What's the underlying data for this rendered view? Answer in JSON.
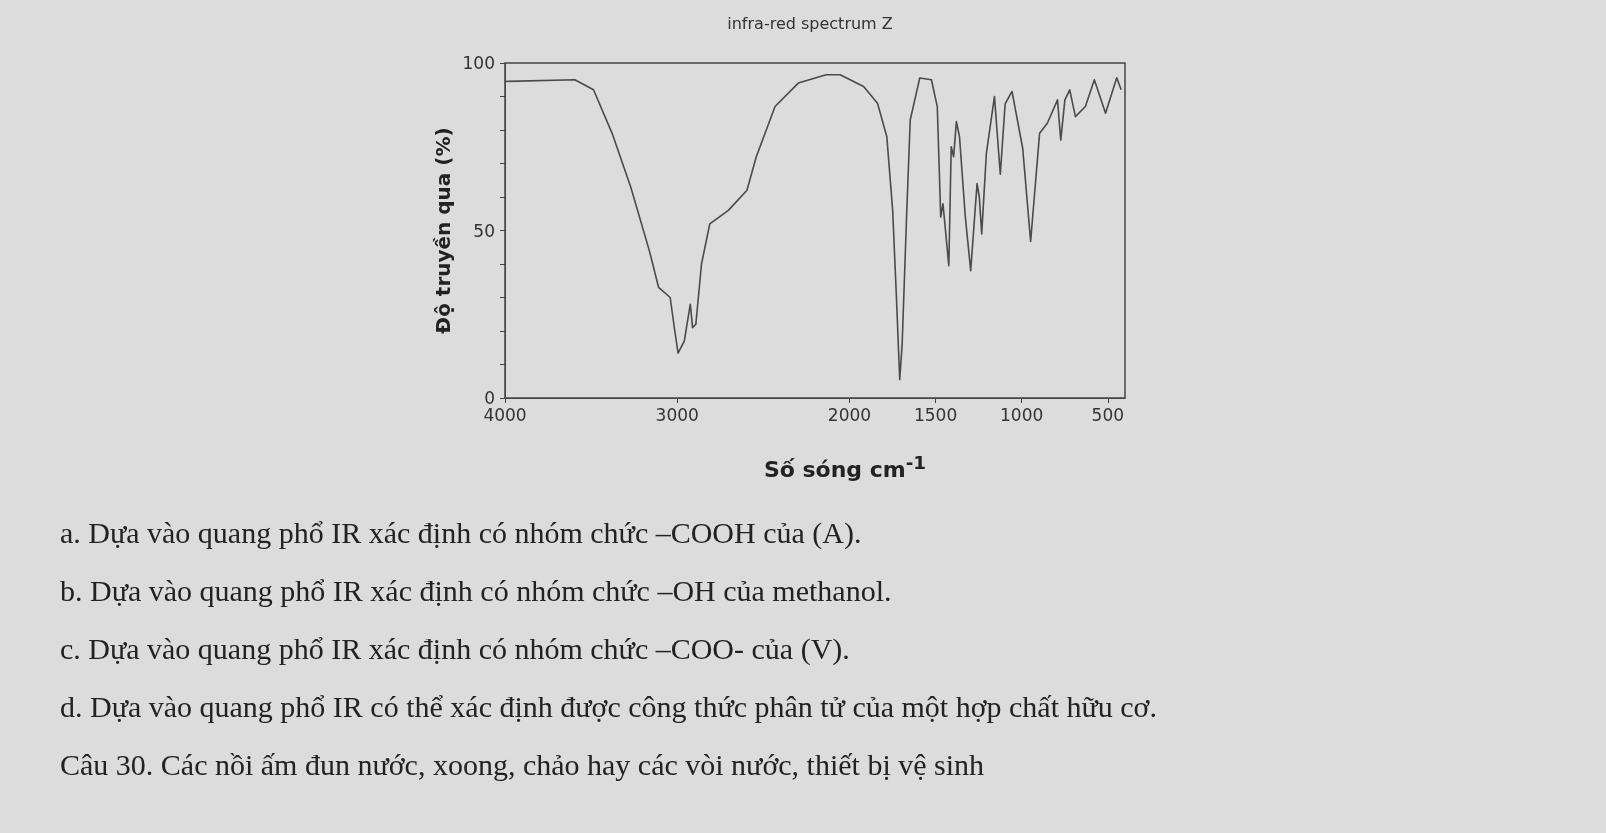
{
  "chart_data": {
    "type": "line",
    "title": "infra-red spectrum Z",
    "xlabel": "Số sóng cm$^{-1}$",
    "ylabel": "Độ truyền qua (%)",
    "xlim": [
      4000,
      400
    ],
    "xticks": [
      4000,
      3000,
      2000,
      1500,
      1000,
      500
    ],
    "ylim": [
      0,
      100
    ],
    "yticks": [
      0,
      {
        "value": 10,
        "label": null
      },
      {
        "value": 20,
        "label": null
      },
      {
        "value": 30,
        "label": null
      },
      {
        "value": 40,
        "label": null
      },
      50,
      {
        "value": 60,
        "label": null
      },
      {
        "value": 70,
        "label": null
      },
      {
        "value": 80,
        "label": null
      },
      {
        "value": 90,
        "label": null
      },
      100
    ],
    "grid": false,
    "marker": "none",
    "line_style": "solid",
    "series": [
      {
        "color": "#4a4a4a",
        "x": [
          4000,
          3595,
          3486,
          3378,
          3270,
          3162,
          3108,
          3041,
          3014,
          2995,
          2959,
          2924,
          2911,
          2892,
          2859,
          2811,
          2703,
          2595,
          2541,
          2432,
          2297,
          2135,
          2054,
          1918,
          1837,
          1783,
          1749,
          1728,
          1708,
          1694,
          1667,
          1647,
          1592,
          1524,
          1490,
          1470,
          1457,
          1423,
          1409,
          1395,
          1379,
          1361,
          1327,
          1296,
          1259,
          1246,
          1232,
          1205,
          1158,
          1124,
          1096,
          1056,
          994,
          948,
          896,
          851,
          792,
          773,
          749,
          721,
          688,
          630,
          578,
          513,
          448,
          422
        ],
        "values": [
          94.5,
          95,
          92,
          79,
          63,
          44,
          33,
          30,
          20,
          13.4,
          17,
          28,
          21,
          22,
          40,
          52,
          56,
          62,
          72,
          87,
          94,
          96.5,
          96.5,
          93,
          88,
          78,
          56,
          31,
          5.5,
          16,
          56,
          83,
          95.5,
          95,
          87,
          54,
          58,
          39.5,
          75,
          72,
          82.5,
          78,
          54,
          38,
          64,
          60,
          49,
          73,
          90,
          66.8,
          87.8,
          91.5,
          74.5,
          46.7,
          79,
          82,
          89,
          77,
          89,
          92,
          84,
          87,
          95,
          85,
          95.6,
          92
        ]
      }
    ],
    "annotations": [
      "a. Dựa vào quang phổ IR xác định có nhóm chức –COOH của (A).",
      "b. Dựa vào quang phổ IR xác định có nhóm chức –OH của methanol.",
      "c. Dựa vào quang phổ IR xác định có nhóm chức –COO- của (V).",
      "d. Dựa vào quang phổ IR có thể xác định được công thức phân tử của một hợp chất hữu cơ.",
      "Câu 30. Các nồi ấm đun nước, xoong, chảo hay các vòi nước, thiết bị vệ sinh"
    ]
  }
}
